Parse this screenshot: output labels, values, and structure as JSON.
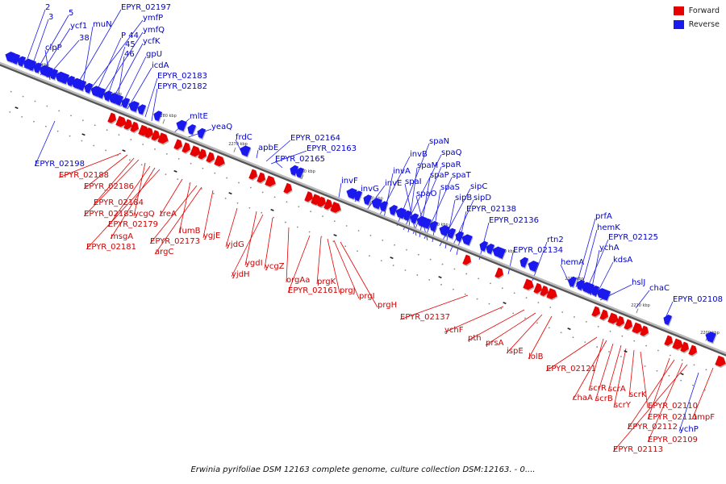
{
  "legend": {
    "forward_label": "Forward",
    "reverse_label": "Reverse",
    "forward_color": "#e60000",
    "reverse_color": "#1a1aee"
  },
  "caption": "Erwinia pyrifoliae DSM 12163 complete genome, culture collection DSM:12163. - 0....",
  "ticks": [
    "2300 kbp",
    "2290 kbp",
    "2280 kbp",
    "2270 kbp",
    "2260 kbp",
    "2250 kbp",
    "2240 kbp",
    "2230 kbp",
    "2220 kbp",
    "2210 kbp",
    "2200 kbp"
  ],
  "reverse_genes": [
    "2",
    "3",
    "5",
    "ycf1",
    "38",
    "clpP",
    "EPYR_02197",
    "muN",
    "ymfP",
    "P 44",
    "ymfQ",
    "45",
    "ycfK",
    "46",
    "gpU",
    "icdA",
    "EPYR_02183",
    "EPYR_02182",
    "mltE",
    "yeaQ",
    "frdC",
    "apbE",
    "EPYR_02164",
    "EPYR_02163",
    "EPYR_02165",
    "invF",
    "invG",
    "invE",
    "invB",
    "invA",
    "spaN",
    "spaQ",
    "spaM",
    "spaR",
    "spaI",
    "spaP",
    "spaT",
    "spaO",
    "spaS",
    "sipC",
    "sipB",
    "sipD",
    "EPYR_02138",
    "EPYR_02136",
    "EPYR_02134",
    "rtn2",
    "prfA",
    "hemK",
    "EPYR_02125",
    "hemA",
    "ychA",
    "kdsA",
    "hslJ",
    "chaC",
    "EPYR_02108",
    "EPYR_02198",
    "ychP"
  ],
  "forward_genes": [
    "EPYR_02188",
    "EPYR_02186",
    "EPYR_02184",
    "EPYR_02185",
    "ycgQ",
    "EPYR_02179",
    "msgA",
    "EPYR_02181",
    "treA",
    "fumB",
    "EPYR_02173",
    "argC",
    "ygjE",
    "yjdG",
    "ygdI",
    "yjdH",
    "ycgZ",
    "orgAa",
    "EPYR_02161",
    "prgK",
    "prgJ",
    "prgI",
    "prgH",
    "EPYR_02137",
    "ychF",
    "pth",
    "prsA",
    "ispE",
    "lolB",
    "EPYR_02121",
    "scrR",
    "chaA",
    "scrB",
    "scrA",
    "scrY",
    "scrK",
    "EPYR_02110",
    "EPYR_02111",
    "EPYR_02112",
    "EPYR_02109",
    "EPYR_02113",
    "ompF"
  ]
}
